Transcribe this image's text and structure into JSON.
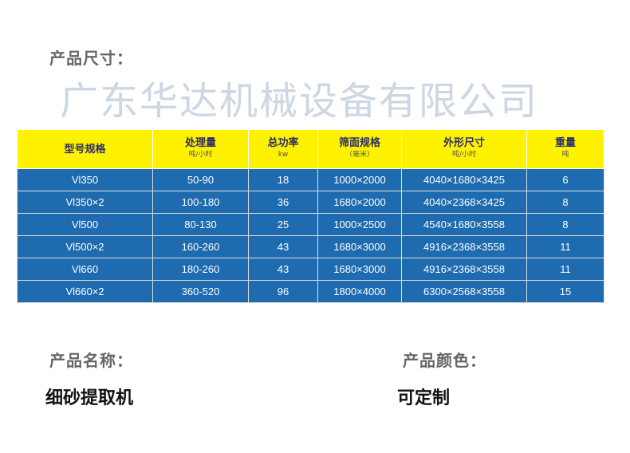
{
  "size_heading": "产品尺寸：",
  "table": {
    "headers": [
      {
        "title": "型号规格",
        "unit": ""
      },
      {
        "title": "处理量",
        "unit": "吨/小时"
      },
      {
        "title": "总功率",
        "unit": "kw"
      },
      {
        "title": "筛面规格",
        "unit": "（毫米）"
      },
      {
        "title": "外形尺寸",
        "unit": "吨/小时"
      },
      {
        "title": "重量",
        "unit": "吨"
      }
    ],
    "rows": [
      [
        "Vl350",
        "50-90",
        "18",
        "1000×2000",
        "4040×1680×3425",
        "6"
      ],
      [
        "Vl350×2",
        "100-180",
        "36",
        "1680×2000",
        "4040×2368×3425",
        "8"
      ],
      [
        "Vl500",
        "80-130",
        "25",
        "1000×2500",
        "4540×1680×3558",
        "8"
      ],
      [
        "Vl500×2",
        "160-260",
        "43",
        "1680×3000",
        "4916×2368×3558",
        "11"
      ],
      [
        "Vl660",
        "180-260",
        "43",
        "1680×3000",
        "4916×2368×3558",
        "11"
      ],
      [
        "Vl660×2",
        "360-520",
        "96",
        "1800×4000",
        "6300×2568×3558",
        "15"
      ]
    ]
  },
  "watermark": "广东华达机械设备有限公司",
  "name_heading": "产品名称：",
  "name_value": "细砂提取机",
  "color_heading": "产品颜色：",
  "color_value": "可定制",
  "colors": {
    "header_bg": "#fff200",
    "row_bg": "#1e6bb0"
  }
}
